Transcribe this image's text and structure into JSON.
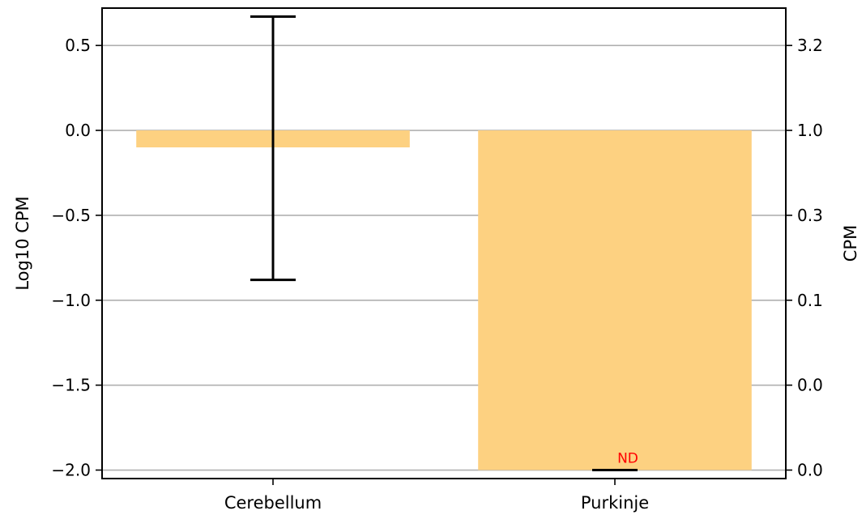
{
  "chart_data": {
    "type": "bar",
    "title": "",
    "categories": [
      "Cerebellum",
      "Purkinje"
    ],
    "values": [
      -0.1,
      -2.0
    ],
    "error_bars": [
      {
        "low": -0.88,
        "high": 0.67
      },
      {
        "low": -2.0,
        "high": -2.0
      }
    ],
    "annotations": [
      {
        "category": "Purkinje",
        "text": "ND",
        "color": "#ff0000"
      }
    ],
    "bar_color": "#fdd181",
    "xlabel": "",
    "ylabel": "Log10 CPM",
    "ylabel_right": "CPM",
    "ylim": [
      -2.05,
      0.72
    ],
    "yticks": [
      0.5,
      0.0,
      -0.5,
      -1.0,
      -1.5,
      -2.0
    ],
    "ytick_labels": [
      "0.5",
      "0.0",
      "−0.5",
      "−1.0",
      "−1.5",
      "−2.0"
    ],
    "yticks_right_labels": [
      "3.2",
      "1.0",
      "0.3",
      "0.1",
      "0.0",
      "0.0"
    ],
    "grid": "horizontal"
  }
}
